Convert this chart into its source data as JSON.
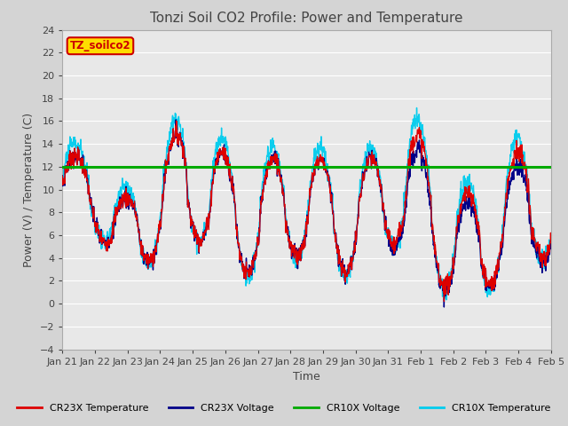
{
  "title": "Tonzi Soil CO2 Profile: Power and Temperature",
  "xlabel": "Time",
  "ylabel": "Power (V) / Temperature (C)",
  "ylim": [
    -4,
    24
  ],
  "yticks": [
    -4,
    -2,
    0,
    2,
    4,
    6,
    8,
    10,
    12,
    14,
    16,
    18,
    20,
    22,
    24
  ],
  "xtick_labels": [
    "Jan 21",
    "Jan 22",
    "Jan 23",
    "Jan 24",
    "Jan 25",
    "Jan 26",
    "Jan 27",
    "Jan 28",
    "Jan 29",
    "Jan 30",
    "Jan 31",
    "Feb 1",
    "Feb 2",
    "Feb 3",
    "Feb 4",
    "Feb 5"
  ],
  "annotation_text": "TZ_soilco2",
  "annotation_color": "#cc0000",
  "annotation_bg": "#ffdd00",
  "cr23x_temp_color": "#dd0000",
  "cr23x_volt_color": "#000088",
  "cr10x_volt_color": "#00aa00",
  "cr10x_temp_color": "#00ccee",
  "hline_y": 12,
  "hline_color": "#00aa00",
  "fig_facecolor": "#d4d4d4",
  "plot_bg_color": "#e8e8e8",
  "grid_color": "#ffffff",
  "legend_labels": [
    "CR23X Temperature",
    "CR23X Voltage",
    "CR10X Voltage",
    "CR10X Temperature"
  ],
  "legend_colors": [
    "#dd0000",
    "#000088",
    "#00aa00",
    "#00ccee"
  ]
}
